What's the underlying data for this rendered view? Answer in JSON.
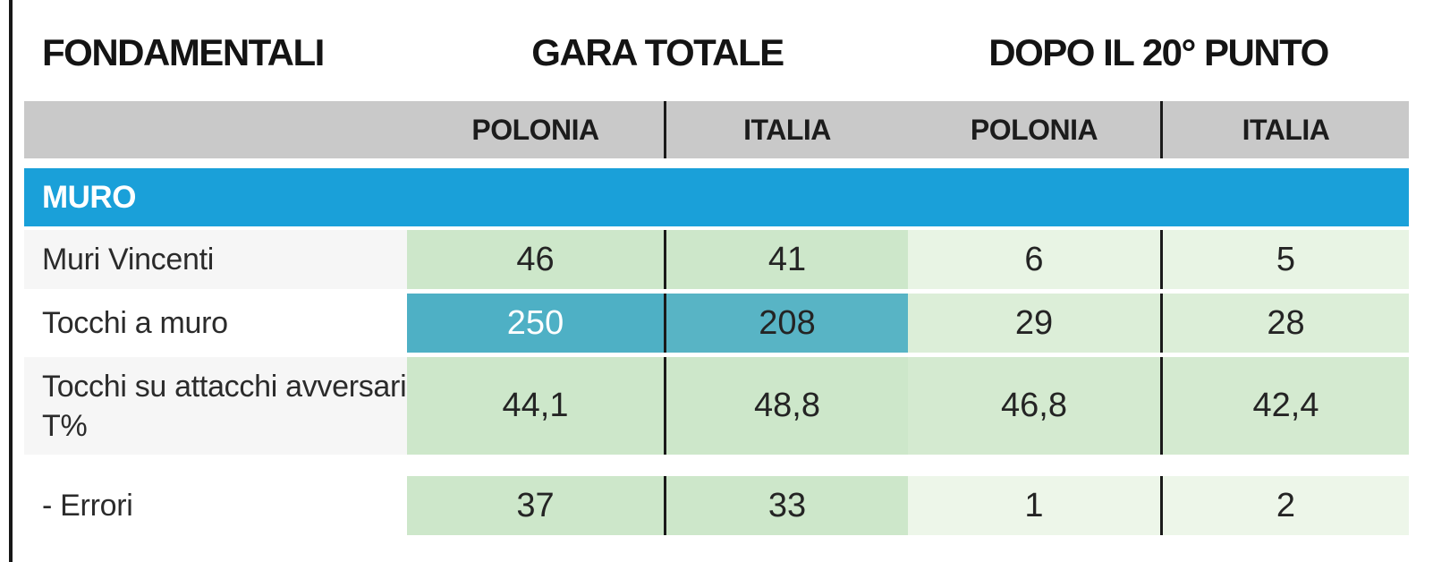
{
  "header": {
    "fundamentals": "FONDAMENTALI",
    "match_total": "GARA TOTALE",
    "after_20th_point": "DOPO IL 20° PUNTO"
  },
  "subheader": {
    "gara_polonia": "POLONIA",
    "gara_italia": "ITALIA",
    "dopo_polonia": "POLONIA",
    "dopo_italia": "ITALIA"
  },
  "section": {
    "title": "MURO"
  },
  "rows": [
    {
      "label": "Muri Vincenti",
      "gara_polonia": "46",
      "gara_italia": "41",
      "dopo_polonia": "6",
      "dopo_italia": "5"
    },
    {
      "label": "Tocchi a muro",
      "gara_polonia": "250",
      "gara_italia": "208",
      "dopo_polonia": "29",
      "dopo_italia": "28"
    },
    {
      "label": "Tocchi su attacchi avversari T%",
      "gara_polonia": "44,1",
      "gara_italia": "48,8",
      "dopo_polonia": "46,8",
      "dopo_italia": "42,4"
    },
    {
      "label": "- Errori",
      "gara_polonia": "37",
      "gara_italia": "33",
      "dopo_polonia": "1",
      "dopo_italia": "2"
    }
  ],
  "colors": {
    "section_bar_blue": "#1aa0d9",
    "team_header_gray": "#c9c9c9",
    "highlight_teal_strong": "#4eb0c5",
    "highlight_teal": "#58b4c5",
    "green_mid": "#cde7ca",
    "green_light": "#dceed8",
    "green_extra_light": "#e8f4e4",
    "divider_black": "#1a1a1a"
  }
}
